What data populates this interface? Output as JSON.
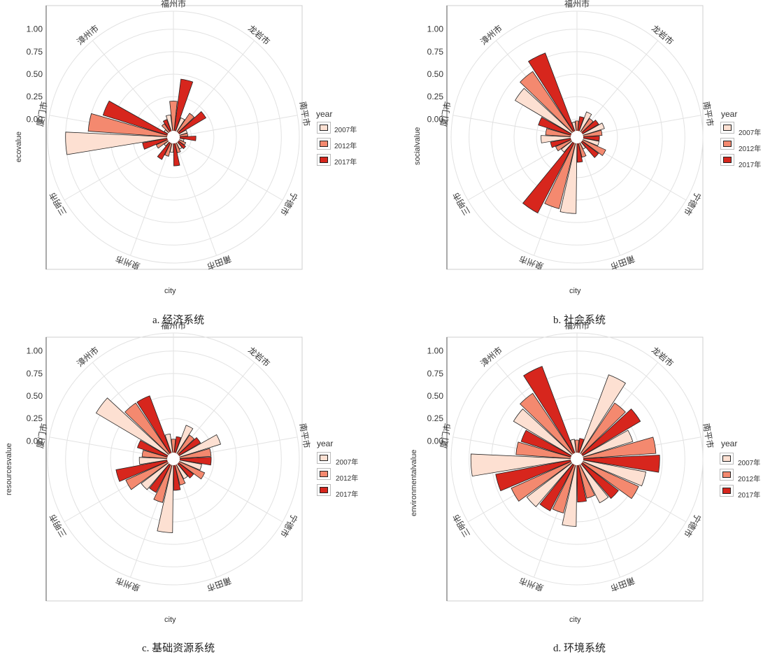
{
  "legend": {
    "title": "year",
    "items": [
      "2007年",
      "2012年",
      "2017年"
    ],
    "colors": [
      "#fde0d2",
      "#f4896f",
      "#d7261d"
    ]
  },
  "chart_data": [
    {
      "type": "polar-bar",
      "caption": "a. 经济系统",
      "ylabel": "ecovalue",
      "xlabel": "city",
      "ylim": [
        -0.2,
        1.2
      ],
      "yticks": [
        "1.00",
        "0.75",
        "0.50",
        "0.25",
        "0.00"
      ],
      "ytick_values": [
        1.0,
        0.75,
        0.5,
        0.25,
        0.0
      ],
      "categories": [
        "福州市",
        "龙岩市",
        "南平市",
        "宁德市",
        "莆田市",
        "泉州市",
        "三明市",
        "厦门市",
        "漳州市"
      ],
      "series": [
        {
          "name": "2007年",
          "values": [
            0.05,
            0.03,
            -0.04,
            -0.08,
            -0.05,
            -0.03,
            -0.07,
            1.0,
            -0.08
          ]
        },
        {
          "name": "2012年",
          "values": [
            0.2,
            0.12,
            -0.04,
            -0.05,
            -0.02,
            0.02,
            0.01,
            0.75,
            -0.02
          ]
        },
        {
          "name": "2017年",
          "values": [
            0.45,
            0.22,
            0.05,
            -0.03,
            0.12,
            0.08,
            0.15,
            0.62,
            0.01
          ]
        }
      ]
    },
    {
      "type": "polar-bar",
      "caption": "b. 社会系统",
      "ylabel": "socialvalue",
      "xlabel": "city",
      "ylim": [
        -0.2,
        1.2
      ],
      "yticks": [
        "1.00",
        "0.75",
        "0.50",
        "0.25",
        "0.00"
      ],
      "ytick_values": [
        1.0,
        0.75,
        0.5,
        0.25,
        0.0
      ],
      "categories": [
        "福州市",
        "龙岩市",
        "南平市",
        "宁德市",
        "莆田市",
        "泉州市",
        "三明市",
        "厦门市",
        "漳州市"
      ],
      "series": [
        {
          "name": "2007年",
          "values": [
            -0.03,
            0.1,
            0.12,
            0.05,
            -0.05,
            0.65,
            0.02,
            0.2,
            0.6
          ]
        },
        {
          "name": "2012年",
          "values": [
            -0.02,
            0.05,
            0.08,
            0.15,
            0.03,
            0.62,
            0.06,
            0.15,
            0.68
          ]
        },
        {
          "name": "2017年",
          "values": [
            0.03,
            0.08,
            0.05,
            0.1,
            0.08,
            0.75,
            0.1,
            0.25,
            0.8
          ]
        }
      ]
    },
    {
      "type": "polar-bar",
      "caption": "c. 基础资源系统",
      "ylabel": "resourcesvalue",
      "xlabel": "city",
      "ylim": [
        -0.2,
        1.2
      ],
      "yticks": [
        "1.00",
        "0.75",
        "0.50",
        "0.25",
        "0.00"
      ],
      "ytick_values": [
        1.0,
        0.75,
        0.5,
        0.25,
        0.0
      ],
      "categories": [
        "福州市",
        "龙岩市",
        "南平市",
        "宁德市",
        "莆田市",
        "泉州市",
        "三明市",
        "厦门市",
        "漳州市"
      ],
      "series": [
        {
          "name": "2007年",
          "values": [
            0.08,
            0.2,
            0.35,
            0.12,
            0.05,
            0.62,
            0.25,
            0.18,
            0.8
          ]
        },
        {
          "name": "2012年",
          "values": [
            0.02,
            0.12,
            0.22,
            0.18,
            0.1,
            0.3,
            0.38,
            0.15,
            0.55
          ]
        },
        {
          "name": "2017年",
          "values": [
            0.05,
            0.15,
            0.22,
            0.08,
            0.15,
            0.22,
            0.45,
            0.22,
            0.55
          ]
        }
      ]
    },
    {
      "type": "polar-bar",
      "caption": "d. 环境系统",
      "ylabel": "environmentalvalue",
      "xlabel": "city",
      "ylim": [
        -0.2,
        1.2
      ],
      "yticks": [
        "1.00",
        "0.75",
        "0.50",
        "0.25",
        "0.00"
      ],
      "ytick_values": [
        1.0,
        0.75,
        0.5,
        0.25,
        0.0
      ],
      "categories": [
        "福州市",
        "龙岩市",
        "南平市",
        "宁德市",
        "莆田市",
        "泉州市",
        "三明市",
        "厦门市",
        "漳州市"
      ],
      "series": [
        {
          "name": "2007年",
          "values": [
            0.02,
            0.8,
            0.45,
            0.58,
            0.35,
            0.55,
            0.5,
            0.98,
            0.62
          ]
        },
        {
          "name": "2012年",
          "values": [
            0.01,
            0.55,
            0.68,
            0.55,
            0.25,
            0.42,
            0.6,
            0.48,
            0.68
          ]
        },
        {
          "name": "2017年",
          "values": [
            0.03,
            0.62,
            0.72,
            0.38,
            0.28,
            0.45,
            0.72,
            0.45,
            0.9
          ]
        }
      ]
    }
  ]
}
